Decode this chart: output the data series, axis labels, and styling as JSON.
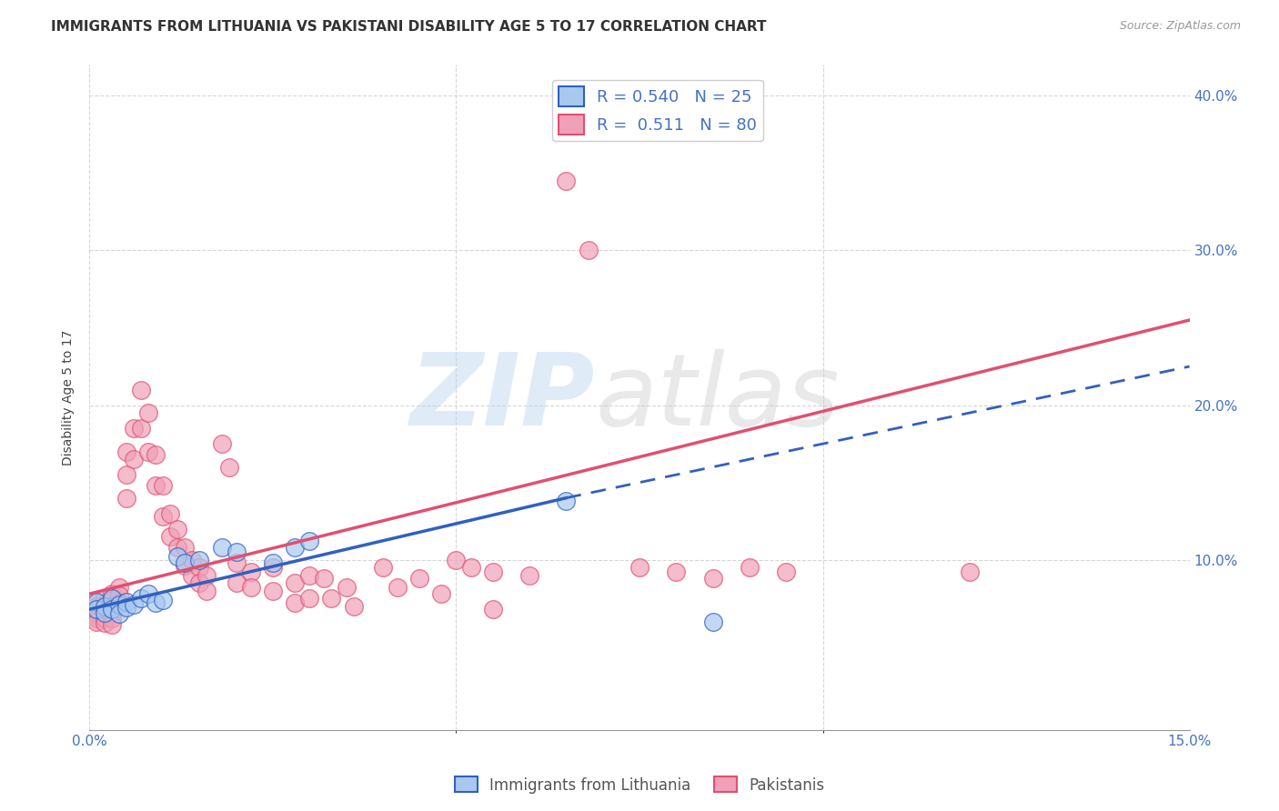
{
  "title": "IMMIGRANTS FROM LITHUANIA VS PAKISTANI DISABILITY AGE 5 TO 17 CORRELATION CHART",
  "source": "Source: ZipAtlas.com",
  "ylabel": "Disability Age 5 to 17",
  "legend_labels": [
    "Immigrants from Lithuania",
    "Pakistanis"
  ],
  "blue_color": "#a8c8f0",
  "pink_color": "#f0a0b8",
  "blue_line_color": "#3060c0",
  "pink_line_color": "#e05070",
  "xlim": [
    0.0,
    0.15
  ],
  "ylim": [
    -0.01,
    0.42
  ],
  "xtick_vals": [
    0.0,
    0.15
  ],
  "xtick_labels": [
    "0.0%",
    "15.0%"
  ],
  "ytick_vals": [
    0.1,
    0.2,
    0.3,
    0.4
  ],
  "ytick_labels": [
    "10.0%",
    "20.0%",
    "30.0%",
    "40.0%"
  ],
  "grid_color": "#cccccc",
  "background_color": "#ffffff",
  "blue_points": [
    [
      0.001,
      0.073
    ],
    [
      0.001,
      0.068
    ],
    [
      0.002,
      0.07
    ],
    [
      0.002,
      0.066
    ],
    [
      0.003,
      0.075
    ],
    [
      0.003,
      0.068
    ],
    [
      0.004,
      0.071
    ],
    [
      0.004,
      0.065
    ],
    [
      0.005,
      0.073
    ],
    [
      0.005,
      0.069
    ],
    [
      0.006,
      0.071
    ],
    [
      0.007,
      0.075
    ],
    [
      0.008,
      0.078
    ],
    [
      0.009,
      0.072
    ],
    [
      0.01,
      0.074
    ],
    [
      0.012,
      0.102
    ],
    [
      0.013,
      0.098
    ],
    [
      0.015,
      0.1
    ],
    [
      0.018,
      0.108
    ],
    [
      0.02,
      0.105
    ],
    [
      0.025,
      0.098
    ],
    [
      0.028,
      0.108
    ],
    [
      0.03,
      0.112
    ],
    [
      0.065,
      0.138
    ],
    [
      0.085,
      0.06
    ]
  ],
  "pink_points": [
    [
      0.001,
      0.072
    ],
    [
      0.001,
      0.07
    ],
    [
      0.001,
      0.068
    ],
    [
      0.001,
      0.066
    ],
    [
      0.001,
      0.064
    ],
    [
      0.001,
      0.062
    ],
    [
      0.001,
      0.06
    ],
    [
      0.002,
      0.075
    ],
    [
      0.002,
      0.071
    ],
    [
      0.002,
      0.068
    ],
    [
      0.002,
      0.065
    ],
    [
      0.002,
      0.062
    ],
    [
      0.002,
      0.059
    ],
    [
      0.003,
      0.078
    ],
    [
      0.003,
      0.074
    ],
    [
      0.003,
      0.07
    ],
    [
      0.003,
      0.066
    ],
    [
      0.003,
      0.062
    ],
    [
      0.003,
      0.058
    ],
    [
      0.004,
      0.082
    ],
    [
      0.004,
      0.077
    ],
    [
      0.004,
      0.072
    ],
    [
      0.005,
      0.17
    ],
    [
      0.005,
      0.155
    ],
    [
      0.005,
      0.14
    ],
    [
      0.006,
      0.185
    ],
    [
      0.006,
      0.165
    ],
    [
      0.007,
      0.21
    ],
    [
      0.007,
      0.185
    ],
    [
      0.008,
      0.195
    ],
    [
      0.008,
      0.17
    ],
    [
      0.009,
      0.168
    ],
    [
      0.009,
      0.148
    ],
    [
      0.01,
      0.148
    ],
    [
      0.01,
      0.128
    ],
    [
      0.011,
      0.13
    ],
    [
      0.011,
      0.115
    ],
    [
      0.012,
      0.12
    ],
    [
      0.012,
      0.108
    ],
    [
      0.013,
      0.108
    ],
    [
      0.013,
      0.096
    ],
    [
      0.014,
      0.1
    ],
    [
      0.014,
      0.09
    ],
    [
      0.015,
      0.095
    ],
    [
      0.015,
      0.085
    ],
    [
      0.016,
      0.09
    ],
    [
      0.016,
      0.08
    ],
    [
      0.018,
      0.175
    ],
    [
      0.019,
      0.16
    ],
    [
      0.02,
      0.098
    ],
    [
      0.02,
      0.085
    ],
    [
      0.022,
      0.092
    ],
    [
      0.022,
      0.082
    ],
    [
      0.025,
      0.095
    ],
    [
      0.025,
      0.08
    ],
    [
      0.028,
      0.085
    ],
    [
      0.028,
      0.072
    ],
    [
      0.03,
      0.09
    ],
    [
      0.03,
      0.075
    ],
    [
      0.032,
      0.088
    ],
    [
      0.033,
      0.075
    ],
    [
      0.035,
      0.082
    ],
    [
      0.036,
      0.07
    ],
    [
      0.04,
      0.095
    ],
    [
      0.042,
      0.082
    ],
    [
      0.045,
      0.088
    ],
    [
      0.048,
      0.078
    ],
    [
      0.05,
      0.1
    ],
    [
      0.052,
      0.095
    ],
    [
      0.055,
      0.092
    ],
    [
      0.055,
      0.068
    ],
    [
      0.06,
      0.09
    ],
    [
      0.065,
      0.345
    ],
    [
      0.068,
      0.3
    ],
    [
      0.075,
      0.095
    ],
    [
      0.08,
      0.092
    ],
    [
      0.085,
      0.088
    ],
    [
      0.09,
      0.095
    ],
    [
      0.095,
      0.092
    ],
    [
      0.12,
      0.092
    ]
  ],
  "blue_trendline_solid": [
    [
      0.0,
      0.068
    ],
    [
      0.065,
      0.14
    ]
  ],
  "blue_trendline_dashed": [
    [
      0.065,
      0.14
    ],
    [
      0.15,
      0.225
    ]
  ],
  "pink_trendline": [
    [
      0.0,
      0.078
    ],
    [
      0.15,
      0.255
    ]
  ],
  "title_fontsize": 11,
  "axis_label_fontsize": 10,
  "tick_fontsize": 11,
  "legend_fontsize": 13,
  "watermark_zip_color": "#c0d8f0",
  "watermark_atlas_color": "#c8c8c8"
}
